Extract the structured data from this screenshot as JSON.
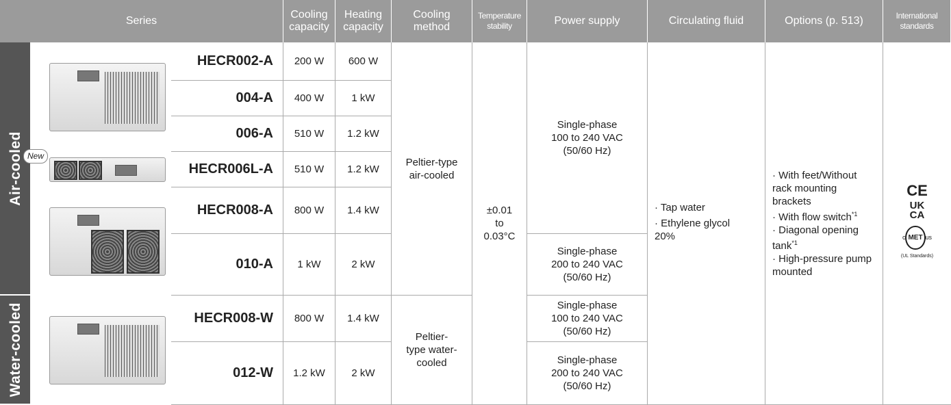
{
  "header": {
    "series": "Series",
    "cooling_capacity": "Cooling capacity",
    "heating_capacity": "Heating capacity",
    "cooling_method": "Cooling method",
    "temperature_stability": "Temperature stability",
    "power_supply": "Power supply",
    "circulating_fluid": "Circulating fluid",
    "options": "Options (p. 513)",
    "international_standards": "International standards"
  },
  "groups": [
    "Air-cooled",
    "Water-cooled"
  ],
  "new_tag": "New",
  "rows": [
    {
      "model": "HECR002-A",
      "cooling": "200 W",
      "heating": "600 W"
    },
    {
      "model": "004-A",
      "cooling": "400 W",
      "heating": "1 kW"
    },
    {
      "model": "006-A",
      "cooling": "510 W",
      "heating": "1.2 kW"
    },
    {
      "model": "HECR006L-A",
      "cooling": "510 W",
      "heating": "1.2 kW"
    },
    {
      "model": "HECR008-A",
      "cooling": "800 W",
      "heating": "1.4 kW"
    },
    {
      "model": "010-A",
      "cooling": "1 kW",
      "heating": "2 kW"
    },
    {
      "model": "HECR008-W",
      "cooling": "800 W",
      "heating": "1.4 kW"
    },
    {
      "model": "012-W",
      "cooling": "1.2 kW",
      "heating": "2 kW"
    }
  ],
  "cooling_methods": [
    {
      "lines": [
        "Peltier-type",
        "air-cooled"
      ]
    },
    {
      "lines": [
        "Peltier-",
        "type water-",
        "cooled"
      ]
    }
  ],
  "temperature_stability": [
    "±0.01",
    "to",
    "0.03°C"
  ],
  "power_supply": [
    {
      "lines": [
        "Single-phase",
        "100 to 240 VAC",
        "(50/60 Hz)"
      ]
    },
    {
      "lines": [
        "Single-phase",
        "200 to 240 VAC",
        "(50/60 Hz)"
      ]
    },
    {
      "lines": [
        "Single-phase",
        "100 to 240 VAC",
        "(50/60 Hz)"
      ]
    },
    {
      "lines": [
        "Single-phase",
        "200 to 240 VAC",
        "(50/60 Hz)"
      ]
    }
  ],
  "circulating_fluid": [
    "· Tap water",
    "· Ethylene glycol 20%"
  ],
  "options": [
    {
      "text": "· With feet/Without rack mounting brackets"
    },
    {
      "text": "· With flow switch",
      "note": "*1"
    },
    {
      "text": "· Diagonal opening tank",
      "note": "*1"
    },
    {
      "text": "· High-pressure pump mounted"
    }
  ],
  "standards": {
    "ce": "CE",
    "uk": "UK",
    "ca": "CA",
    "met": "MET",
    "c": "c",
    "us": "us",
    "note": "(UL Standards)"
  }
}
